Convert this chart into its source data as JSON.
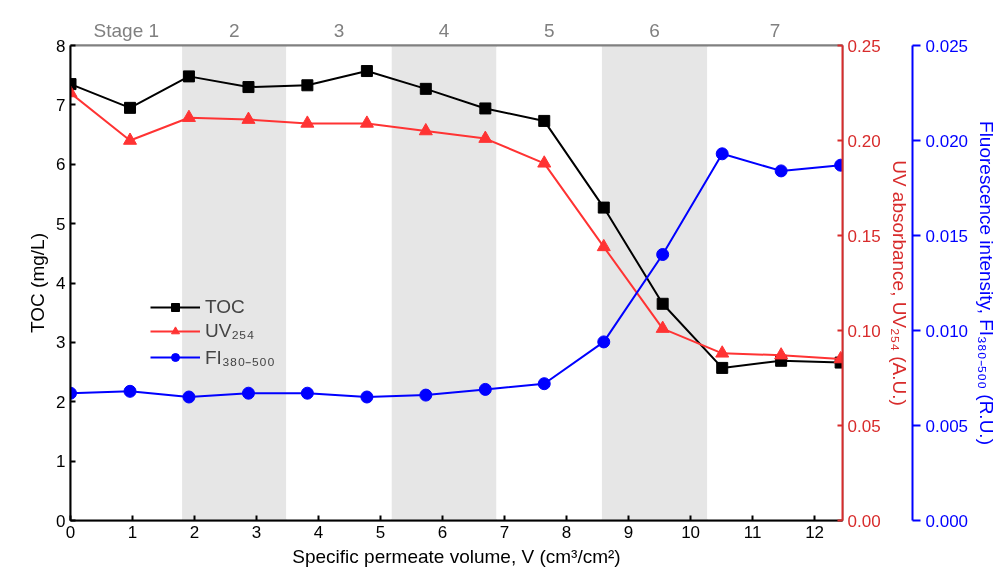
{
  "chart_data": {
    "type": "line",
    "xlabel": "Specific permeate volume, V (cm³/cm²)",
    "ylabel": "TOC (mg/L)",
    "y2label": "UV absorbance, UV₂₅₄ (A.U.)",
    "y3label": "Fluorescence intensity, FI₃₈₀₋₅₀₀ (R.U.)",
    "x": [
      0,
      0.96,
      1.91,
      2.87,
      3.82,
      4.78,
      5.73,
      6.69,
      7.64,
      8.6,
      9.55,
      10.51,
      11.46,
      12.42
    ],
    "series": [
      {
        "name": "TOC",
        "color": "#000000",
        "marker": "square",
        "values": [
          7.35,
          6.95,
          7.48,
          7.3,
          7.33,
          7.57,
          7.27,
          6.94,
          6.73,
          5.27,
          3.65,
          2.57,
          2.69,
          2.66
        ]
      },
      {
        "name": "UV₂₅₄",
        "color": "#ff3333",
        "marker": "triangle",
        "axis": "y2",
        "values": [
          0.225,
          0.2,
          0.212,
          0.211,
          0.209,
          0.209,
          0.205,
          0.201,
          0.188,
          0.144,
          0.101,
          0.088,
          0.087,
          0.085
        ]
      },
      {
        "name": "FI₃₈₀₋₅₀₀",
        "color": "#0000ff",
        "marker": "circle",
        "axis": "y3",
        "values": [
          0.0067,
          0.0068,
          0.0065,
          0.0067,
          0.0067,
          0.0065,
          0.0066,
          0.0069,
          0.0072,
          0.0094,
          0.014,
          0.0193,
          0.0184,
          0.0187
        ]
      }
    ],
    "xlim": [
      0,
      12.45
    ],
    "xticks": [
      0,
      1,
      2,
      3,
      4,
      5,
      6,
      7,
      8,
      9,
      10,
      11,
      12
    ],
    "ylim": [
      0,
      8
    ],
    "yticks": [
      0,
      1,
      2,
      3,
      4,
      5,
      6,
      7,
      8
    ],
    "y2lim": [
      0,
      0.25
    ],
    "y2ticks": [
      {
        "value": 0,
        "label": "0.00"
      },
      0.05,
      {
        "value": 0.1,
        "label": "0.10"
      },
      0.15,
      {
        "value": 0.2,
        "label": "0.20"
      },
      0.25
    ],
    "y3lim": [
      0,
      0.025
    ],
    "y3ticks": [
      {
        "value": 0,
        "label": "0.000"
      },
      0.005,
      {
        "value": 0.01,
        "label": "0.010"
      },
      0.015,
      {
        "value": 0.02,
        "label": "0.020"
      },
      0.025
    ],
    "bands": [
      {
        "axis": "x",
        "from": 0,
        "to": 1.8,
        "label": "Stage 1",
        "color": "#ffffff"
      },
      {
        "axis": "x",
        "from": 1.8,
        "to": 3.48,
        "label": "2",
        "color": "#e6e6e6"
      },
      {
        "axis": "x",
        "from": 3.48,
        "to": 5.18,
        "label": "3",
        "color": "#ffffff"
      },
      {
        "axis": "x",
        "from": 5.18,
        "to": 6.87,
        "label": "4",
        "color": "#e6e6e6"
      },
      {
        "axis": "x",
        "from": 6.87,
        "to": 8.57,
        "label": "5",
        "color": "#ffffff"
      },
      {
        "axis": "x",
        "from": 8.57,
        "to": 10.27,
        "label": "6",
        "color": "#e6e6e6"
      },
      {
        "axis": "x",
        "from": 10.27,
        "to": 12.45,
        "label": "7",
        "color": "#ffffff"
      }
    ],
    "grid": false,
    "legend": "left",
    "line_style": "solid"
  }
}
